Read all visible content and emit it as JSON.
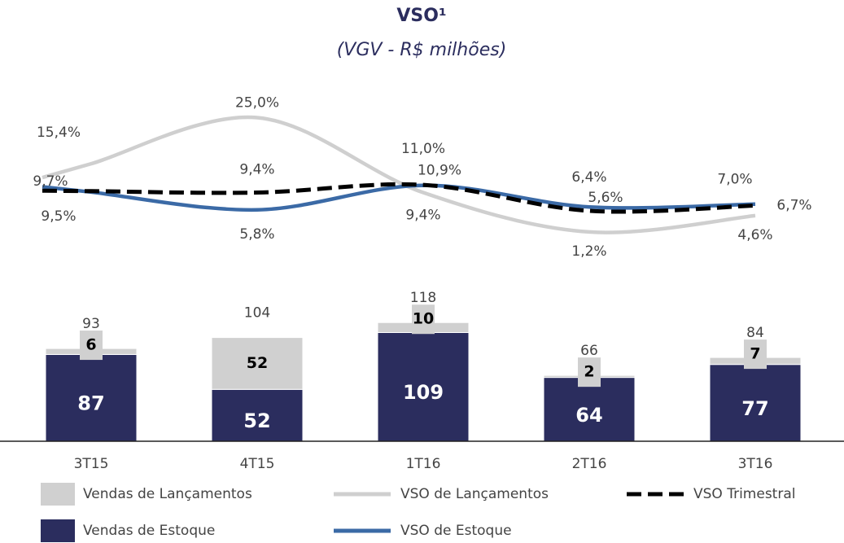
{
  "chart_data": {
    "type": "bar_line",
    "title": "VSO¹",
    "subtitle": "(VGV - R$ milhões)",
    "categories": [
      "3T15",
      "4T15",
      "1T16",
      "2T16",
      "3T16"
    ],
    "ylim": [
      0,
      120
    ],
    "y2lim": [
      0,
      30
    ],
    "totals": [
      93,
      104,
      118,
      66,
      84
    ],
    "series": [
      {
        "name": "Vendas de Estoque",
        "kind": "bar",
        "color": "#2b2d5e",
        "values": [
          87,
          52,
          109,
          64,
          77
        ]
      },
      {
        "name": "Vendas de Lançamentos",
        "kind": "bar",
        "color": "#d0d0d0",
        "values": [
          6,
          52,
          10,
          2,
          7
        ]
      },
      {
        "name": "VSO de Lançamentos",
        "kind": "line",
        "axis": "y2",
        "color": "#cfcfcf",
        "values": [
          15.4,
          25.0,
          9.4,
          1.2,
          4.6
        ],
        "value_labels": [
          "15,4%",
          "25,0%",
          "9,4%",
          "1,2%",
          "4,6%"
        ]
      },
      {
        "name": "VSO de Estoque",
        "kind": "line",
        "axis": "y2",
        "color": "#3b6aa6",
        "values": [
          9.5,
          5.8,
          10.9,
          6.4,
          7.0
        ],
        "value_labels": [
          "9,5%",
          "5,8%",
          "10,9%",
          "6,4%",
          "7,0%"
        ]
      },
      {
        "name": "VSO Trimestral",
        "kind": "line",
        "axis": "y2",
        "dashed": true,
        "color": "#000000",
        "values": [
          9.7,
          9.4,
          11.0,
          5.6,
          6.7
        ],
        "value_labels": [
          "9,7%",
          "9,4%",
          "11,0%",
          "5,6%",
          "6,7%"
        ]
      }
    ]
  }
}
